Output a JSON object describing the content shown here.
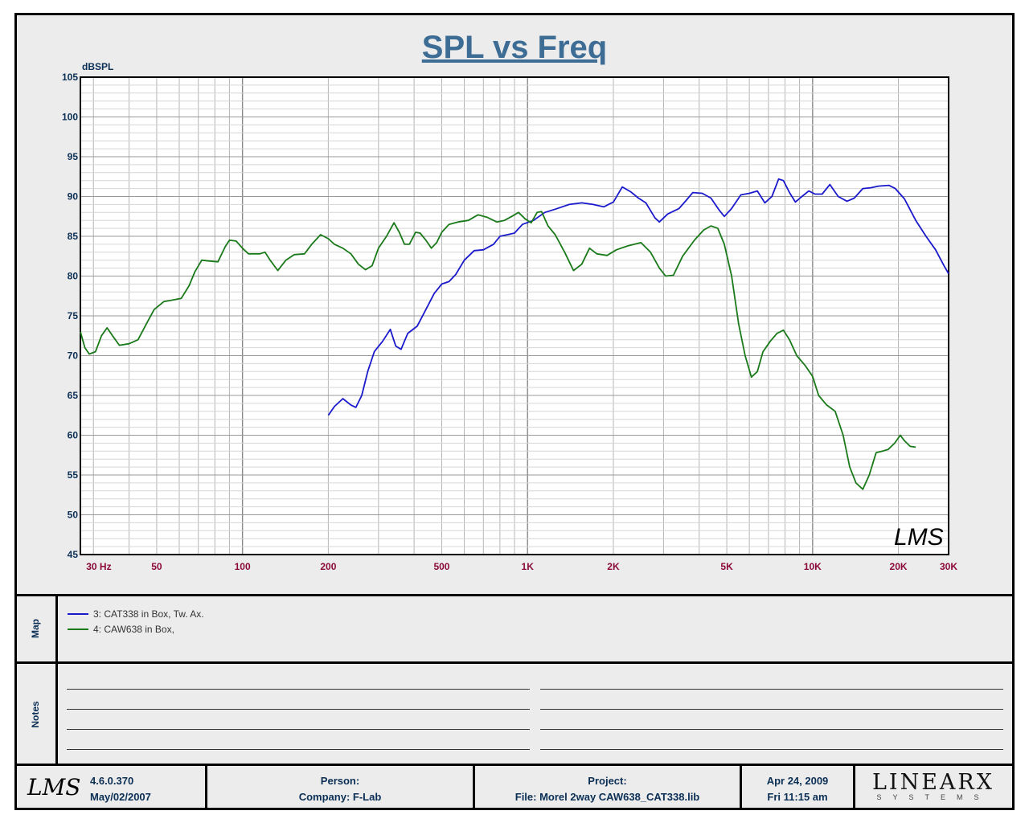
{
  "chart_data": {
    "type": "line",
    "title": "SPL vs Freq",
    "ylabel": "dBSPL",
    "xscale": "log",
    "xlim": [
      27,
      30000
    ],
    "ylim": [
      45,
      105
    ],
    "yticks": [
      45,
      50,
      55,
      60,
      65,
      70,
      75,
      80,
      85,
      90,
      95,
      100,
      105
    ],
    "xtick_labels": [
      {
        "value": 30,
        "label": "30  Hz"
      },
      {
        "value": 50,
        "label": "50"
      },
      {
        "value": 100,
        "label": "100"
      },
      {
        "value": 200,
        "label": "200"
      },
      {
        "value": 500,
        "label": "500"
      },
      {
        "value": 1000,
        "label": "1K"
      },
      {
        "value": 2000,
        "label": "2K"
      },
      {
        "value": 5000,
        "label": "5K"
      },
      {
        "value": 10000,
        "label": "10K"
      },
      {
        "value": 20000,
        "label": "20K"
      },
      {
        "value": 30000,
        "label": "30K"
      }
    ],
    "watermark": "LMS",
    "series": [
      {
        "name": "3: CAT338 in Box, Tw. Ax.",
        "color": "#1a1acc",
        "points": [
          [
            200,
            62.5
          ],
          [
            210,
            63.6
          ],
          [
            225,
            64.6
          ],
          [
            240,
            63.8
          ],
          [
            250,
            63.5
          ],
          [
            262,
            65
          ],
          [
            275,
            68
          ],
          [
            290,
            70.5
          ],
          [
            310,
            71.8
          ],
          [
            330,
            73.3
          ],
          [
            345,
            71.2
          ],
          [
            360,
            70.8
          ],
          [
            380,
            72.8
          ],
          [
            410,
            73.7
          ],
          [
            440,
            75.8
          ],
          [
            470,
            77.8
          ],
          [
            500,
            79
          ],
          [
            530,
            79.3
          ],
          [
            560,
            80.2
          ],
          [
            600,
            82
          ],
          [
            650,
            83.2
          ],
          [
            700,
            83.3
          ],
          [
            760,
            84
          ],
          [
            800,
            85
          ],
          [
            850,
            85.2
          ],
          [
            900,
            85.4
          ],
          [
            960,
            86.5
          ],
          [
            1050,
            87
          ],
          [
            1150,
            88
          ],
          [
            1250,
            88.4
          ],
          [
            1400,
            89
          ],
          [
            1550,
            89.2
          ],
          [
            1700,
            89
          ],
          [
            1850,
            88.7
          ],
          [
            2000,
            89.3
          ],
          [
            2150,
            91.2
          ],
          [
            2300,
            90.6
          ],
          [
            2450,
            89.8
          ],
          [
            2600,
            89.2
          ],
          [
            2800,
            87.3
          ],
          [
            2900,
            86.8
          ],
          [
            3100,
            87.8
          ],
          [
            3400,
            88.5
          ],
          [
            3600,
            89.5
          ],
          [
            3800,
            90.5
          ],
          [
            4100,
            90.4
          ],
          [
            4400,
            89.8
          ],
          [
            4700,
            88.3
          ],
          [
            4900,
            87.5
          ],
          [
            5200,
            88.5
          ],
          [
            5600,
            90.2
          ],
          [
            6000,
            90.4
          ],
          [
            6400,
            90.7
          ],
          [
            6800,
            89.2
          ],
          [
            7200,
            90
          ],
          [
            7600,
            92.2
          ],
          [
            7900,
            92
          ],
          [
            8300,
            90.5
          ],
          [
            8700,
            89.3
          ],
          [
            9100,
            89.9
          ],
          [
            9700,
            90.7
          ],
          [
            10200,
            90.3
          ],
          [
            10800,
            90.3
          ],
          [
            11500,
            91.5
          ],
          [
            12300,
            90
          ],
          [
            13200,
            89.4
          ],
          [
            14000,
            89.8
          ],
          [
            15000,
            91
          ],
          [
            16000,
            91.1
          ],
          [
            17000,
            91.3
          ],
          [
            18500,
            91.4
          ],
          [
            19500,
            91
          ],
          [
            21000,
            89.7
          ],
          [
            23000,
            87
          ],
          [
            25000,
            85
          ],
          [
            27000,
            83.3
          ],
          [
            29000,
            81.2
          ],
          [
            30000,
            80.3
          ]
        ]
      },
      {
        "name": "4: CAW638 in Box,",
        "color": "#1a7a1a",
        "points": [
          [
            27,
            73
          ],
          [
            28,
            71
          ],
          [
            29,
            70.2
          ],
          [
            30.5,
            70.5
          ],
          [
            32,
            72.5
          ],
          [
            33.5,
            73.5
          ],
          [
            35,
            72.5
          ],
          [
            37,
            71.3
          ],
          [
            40,
            71.5
          ],
          [
            43,
            72
          ],
          [
            46,
            74
          ],
          [
            49,
            75.8
          ],
          [
            53,
            76.8
          ],
          [
            57,
            77
          ],
          [
            61,
            77.2
          ],
          [
            65,
            78.8
          ],
          [
            68,
            80.5
          ],
          [
            72,
            82
          ],
          [
            76,
            81.9
          ],
          [
            82,
            81.8
          ],
          [
            87,
            83.7
          ],
          [
            90,
            84.5
          ],
          [
            95,
            84.4
          ],
          [
            100,
            83.5
          ],
          [
            105,
            82.8
          ],
          [
            115,
            82.8
          ],
          [
            120,
            83
          ],
          [
            125,
            82
          ],
          [
            133,
            80.7
          ],
          [
            142,
            82
          ],
          [
            152,
            82.7
          ],
          [
            165,
            82.8
          ],
          [
            175,
            84
          ],
          [
            188,
            85.2
          ],
          [
            200,
            84.7
          ],
          [
            210,
            84
          ],
          [
            225,
            83.5
          ],
          [
            240,
            82.8
          ],
          [
            255,
            81.5
          ],
          [
            270,
            80.8
          ],
          [
            285,
            81.3
          ],
          [
            300,
            83.5
          ],
          [
            320,
            85
          ],
          [
            340,
            86.7
          ],
          [
            355,
            85.5
          ],
          [
            370,
            84
          ],
          [
            385,
            84
          ],
          [
            405,
            85.5
          ],
          [
            420,
            85.4
          ],
          [
            440,
            84.5
          ],
          [
            460,
            83.5
          ],
          [
            480,
            84.2
          ],
          [
            500,
            85.5
          ],
          [
            530,
            86.5
          ],
          [
            570,
            86.8
          ],
          [
            620,
            87
          ],
          [
            670,
            87.7
          ],
          [
            720,
            87.4
          ],
          [
            780,
            86.8
          ],
          [
            830,
            87
          ],
          [
            880,
            87.5
          ],
          [
            930,
            88
          ],
          [
            980,
            87.2
          ],
          [
            1030,
            86.7
          ],
          [
            1080,
            88
          ],
          [
            1120,
            88.1
          ],
          [
            1180,
            86.3
          ],
          [
            1250,
            85.2
          ],
          [
            1350,
            83
          ],
          [
            1450,
            80.7
          ],
          [
            1550,
            81.5
          ],
          [
            1650,
            83.5
          ],
          [
            1750,
            82.8
          ],
          [
            1900,
            82.6
          ],
          [
            2050,
            83.3
          ],
          [
            2250,
            83.8
          ],
          [
            2500,
            84.2
          ],
          [
            2700,
            83
          ],
          [
            2900,
            81
          ],
          [
            3050,
            80
          ],
          [
            3250,
            80.1
          ],
          [
            3500,
            82.5
          ],
          [
            3850,
            84.5
          ],
          [
            4150,
            85.8
          ],
          [
            4400,
            86.3
          ],
          [
            4650,
            86
          ],
          [
            4900,
            84
          ],
          [
            5200,
            80
          ],
          [
            5500,
            74
          ],
          [
            5800,
            70
          ],
          [
            6100,
            67.3
          ],
          [
            6400,
            68
          ],
          [
            6700,
            70.5
          ],
          [
            7100,
            71.8
          ],
          [
            7500,
            72.8
          ],
          [
            7900,
            73.2
          ],
          [
            8300,
            72
          ],
          [
            8800,
            70
          ],
          [
            9400,
            68.8
          ],
          [
            10000,
            67.4
          ],
          [
            10500,
            65
          ],
          [
            11200,
            63.8
          ],
          [
            12000,
            63
          ],
          [
            12800,
            60
          ],
          [
            13500,
            56
          ],
          [
            14200,
            54
          ],
          [
            15000,
            53.2
          ],
          [
            15800,
            55
          ],
          [
            16700,
            57.8
          ],
          [
            17600,
            58
          ],
          [
            18400,
            58.2
          ],
          [
            19400,
            59
          ],
          [
            20300,
            60
          ],
          [
            21000,
            59.3
          ],
          [
            22000,
            58.6
          ],
          [
            23000,
            58.5
          ]
        ]
      }
    ]
  },
  "map": {
    "label": "Map",
    "items": [
      {
        "text": "3: CAT338 in Box, Tw. Ax.",
        "color": "#1a1acc"
      },
      {
        "text": "4: CAW638 in Box,",
        "color": "#1a7a1a"
      }
    ]
  },
  "notes": {
    "label": "Notes"
  },
  "footer": {
    "logo": "LMS",
    "version": "4.6.0.370",
    "version_date": "May/02/2007",
    "person_label": "Person:",
    "company": "Company: F-Lab",
    "project_label": "Project:",
    "file": "File: Morel 2way CAW638_CAT338.lib",
    "date": "Apr 24, 2009",
    "time": "Fri 11:15 am",
    "brand_top": "LINEARX",
    "brand_bottom": "SYSTEMS"
  }
}
